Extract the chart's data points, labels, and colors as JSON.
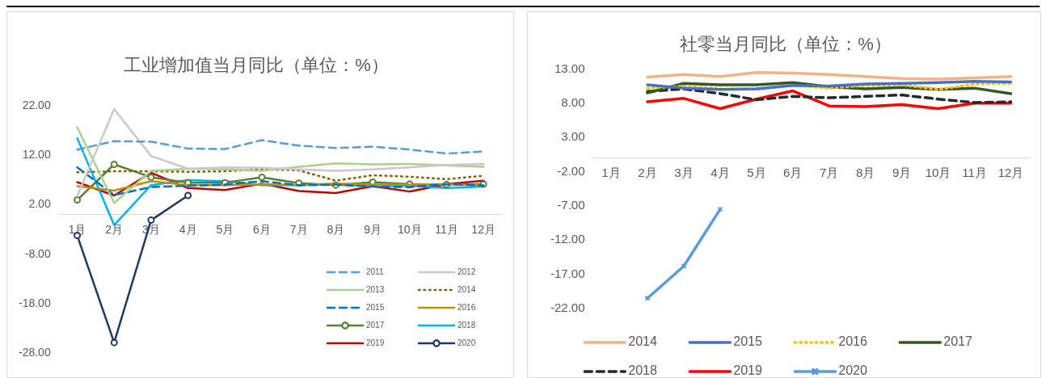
{
  "chart_data": [
    {
      "type": "line",
      "title": "工业增加值当月同比（单位：%）",
      "categories": [
        "1月",
        "2月",
        "3月",
        "4月",
        "5月",
        "6月",
        "7月",
        "8月",
        "9月",
        "10月",
        "11月",
        "12月"
      ],
      "series": [
        {
          "name": "2011",
          "color": "#5b9bd5",
          "line_style": "dashed",
          "marker": "none",
          "values": [
            13.2,
            14.9,
            14.8,
            13.4,
            13.3,
            15.1,
            14.0,
            13.5,
            13.8,
            13.2,
            12.4,
            12.8
          ]
        },
        {
          "name": "2012",
          "color": "#c9c9c9",
          "line_style": "solid",
          "marker": "none",
          "values": [
            3.8,
            21.4,
            11.9,
            9.3,
            9.6,
            9.5,
            9.2,
            8.9,
            9.2,
            9.6,
            10.1,
            10.3
          ]
        },
        {
          "name": "2013",
          "color": "#a9d18e",
          "line_style": "solid",
          "marker": "none",
          "values": [
            17.7,
            2.4,
            8.9,
            9.3,
            9.2,
            8.9,
            9.7,
            10.4,
            10.2,
            10.3,
            10.0,
            9.7
          ]
        },
        {
          "name": "2014",
          "color": "#806000",
          "line_style": "dotted",
          "marker": "none",
          "values": [
            8.6,
            8.8,
            8.8,
            8.7,
            8.8,
            9.2,
            9.0,
            6.9,
            8.0,
            7.7,
            7.2,
            7.9
          ]
        },
        {
          "name": "2015",
          "color": "#0070c0",
          "line_style": "dashed",
          "marker": "none",
          "values": [
            9.6,
            4.0,
            5.6,
            5.9,
            6.1,
            6.8,
            6.0,
            6.1,
            5.7,
            5.6,
            6.2,
            5.9
          ]
        },
        {
          "name": "2016",
          "color": "#bf9000",
          "line_style": "solid",
          "marker": "none",
          "values": [
            5.8,
            4.9,
            6.8,
            6.0,
            6.0,
            6.2,
            6.0,
            6.3,
            6.1,
            6.1,
            6.2,
            6.0
          ]
        },
        {
          "name": "2017",
          "color": "#548235",
          "line_style": "solid",
          "marker": "circle",
          "values": [
            3.0,
            10.2,
            7.6,
            6.5,
            6.5,
            7.6,
            6.4,
            6.0,
            6.6,
            6.2,
            6.1,
            6.2
          ]
        },
        {
          "name": "2018",
          "color": "#00b0f0",
          "line_style": "solid",
          "marker": "none",
          "values": [
            15.5,
            -2.1,
            6.0,
            7.0,
            6.8,
            6.0,
            6.0,
            6.1,
            5.8,
            5.9,
            5.4,
            5.7
          ]
        },
        {
          "name": "2019",
          "color": "#c00000",
          "line_style": "solid",
          "marker": "none",
          "values": [
            6.6,
            3.9,
            8.5,
            5.4,
            5.0,
            6.3,
            4.8,
            4.4,
            5.8,
            4.7,
            6.2,
            6.9
          ]
        },
        {
          "name": "2020",
          "color": "#203864",
          "line_style": "solid",
          "marker": "circle",
          "values": [
            -4.2,
            -25.9,
            -1.1,
            3.9,
            null,
            null,
            null,
            null,
            null,
            null,
            null,
            null
          ]
        }
      ],
      "ylim": [
        -28,
        22
      ],
      "yticks": [
        {
          "value": 22,
          "label": "22.00"
        },
        {
          "value": 12,
          "label": "12.00"
        },
        {
          "value": 2,
          "label": "2.00"
        },
        {
          "value": -8,
          "label": "-8.00"
        },
        {
          "value": -18,
          "label": "-18.00"
        },
        {
          "value": -28,
          "label": "-28.00"
        }
      ],
      "grid": false,
      "legend": "bottom right"
    },
    {
      "type": "line",
      "title": "社零当月同比（单位：%）",
      "categories": [
        "1月",
        "2月",
        "3月",
        "4月",
        "5月",
        "6月",
        "7月",
        "8月",
        "9月",
        "10月",
        "11月",
        "12月"
      ],
      "series": [
        {
          "name": "2014",
          "color": "#f4b183",
          "line_style": "solid",
          "marker": "none",
          "values": [
            null,
            11.8,
            12.2,
            11.9,
            12.5,
            12.4,
            12.2,
            11.9,
            11.6,
            11.5,
            11.7,
            11.9
          ]
        },
        {
          "name": "2015",
          "color": "#4472c4",
          "line_style": "solid",
          "marker": "none",
          "values": [
            null,
            10.7,
            10.2,
            10.0,
            10.1,
            10.6,
            10.5,
            10.8,
            10.9,
            11.0,
            11.2,
            11.1
          ]
        },
        {
          "name": "2016",
          "color": "#ffc000",
          "line_style": "dotted",
          "marker": "none",
          "values": [
            null,
            10.2,
            10.5,
            10.1,
            10.0,
            10.6,
            10.2,
            10.6,
            10.7,
            10.0,
            10.8,
            10.9
          ]
        },
        {
          "name": "2017",
          "color": "#375623",
          "line_style": "solid",
          "marker": "none",
          "values": [
            null,
            9.5,
            10.9,
            10.7,
            10.7,
            11.0,
            10.4,
            10.1,
            10.3,
            10.0,
            10.2,
            9.4
          ]
        },
        {
          "name": "2018",
          "color": "#222a35",
          "line_style": "dashed",
          "marker": "none",
          "values": [
            null,
            9.7,
            10.1,
            9.4,
            8.5,
            9.0,
            8.8,
            9.0,
            9.2,
            8.6,
            8.1,
            8.2
          ]
        },
        {
          "name": "2019",
          "color": "#ff0000",
          "line_style": "solid",
          "marker": "none",
          "values": [
            null,
            8.2,
            8.7,
            7.2,
            8.6,
            9.8,
            7.6,
            7.5,
            7.8,
            7.2,
            8.0,
            8.0
          ]
        },
        {
          "name": "2020",
          "color": "#5b9bd5",
          "line_style": "solid",
          "marker": "cross",
          "values": [
            null,
            -20.5,
            -15.8,
            -7.5,
            null,
            null,
            null,
            null,
            null,
            null,
            null,
            null
          ]
        }
      ],
      "ylim": [
        -22,
        13
      ],
      "yticks": [
        {
          "value": 13,
          "label": "13.00"
        },
        {
          "value": 8,
          "label": "8.00"
        },
        {
          "value": 3,
          "label": "3.00"
        },
        {
          "value": -2,
          "label": "-2.00"
        },
        {
          "value": -7,
          "label": "-7.00"
        },
        {
          "value": -12,
          "label": "-12.00"
        },
        {
          "value": -17,
          "label": "-17.00"
        },
        {
          "value": -22,
          "label": "-22.00"
        }
      ],
      "grid": false,
      "legend": "bottom"
    }
  ]
}
